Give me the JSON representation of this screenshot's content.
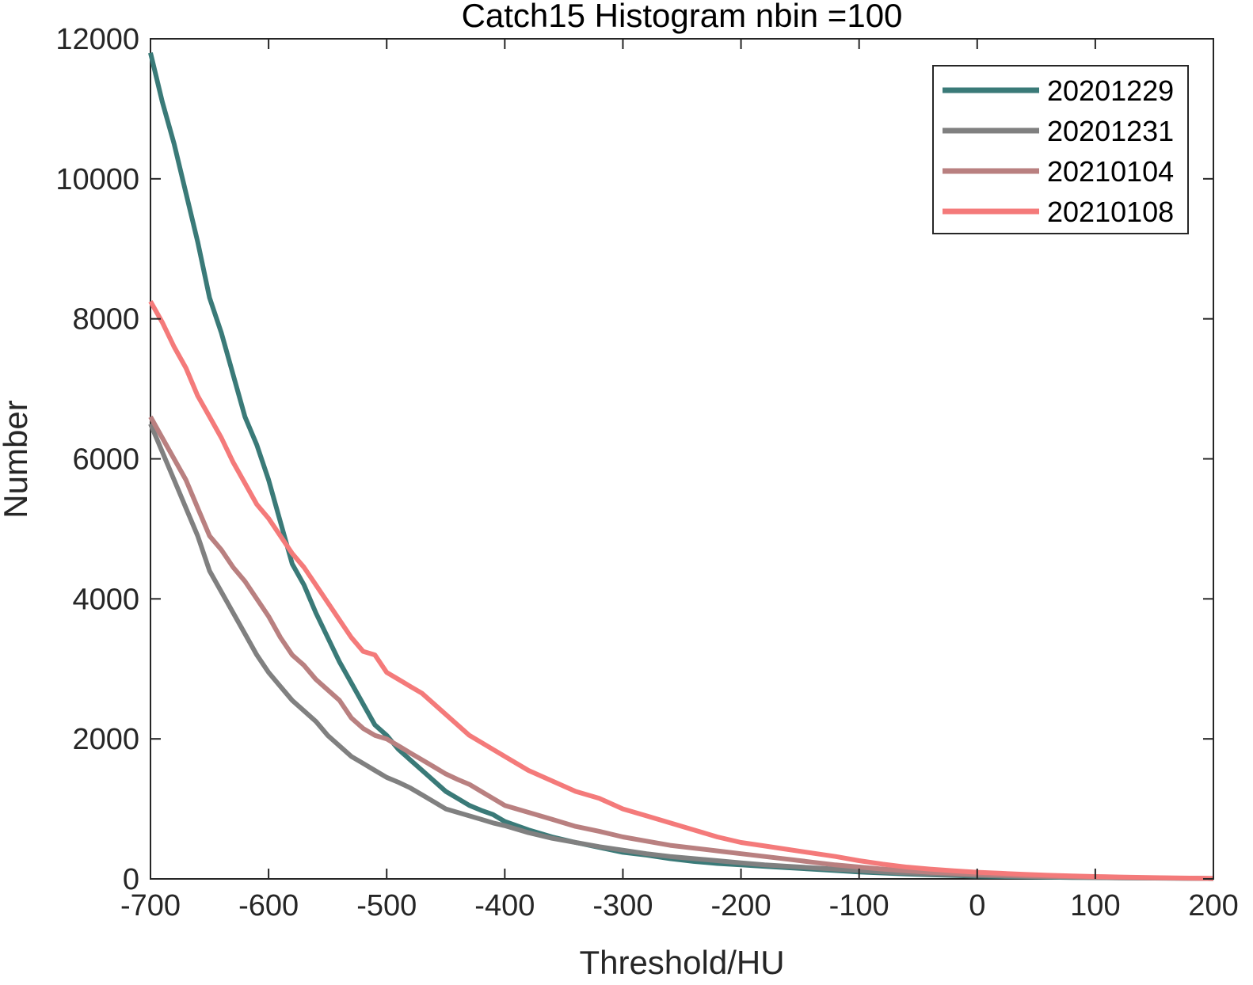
{
  "chart_data": {
    "type": "line",
    "title": "Catch15  Histogram nbin =100",
    "xlabel": "Threshold/HU",
    "ylabel": "Number",
    "xlim": [
      -700,
      200
    ],
    "ylim": [
      0,
      12000
    ],
    "xticks": [
      -700,
      -600,
      -500,
      -400,
      -300,
      -200,
      -100,
      0,
      100,
      200
    ],
    "yticks": [
      0,
      2000,
      4000,
      6000,
      8000,
      10000,
      12000
    ],
    "xtick_labels": [
      "-700",
      "-600",
      "-500",
      "-400",
      "-300",
      "-200",
      "-100",
      "0",
      "100",
      "200"
    ],
    "ytick_labels": [
      "0",
      "2000",
      "4000",
      "6000",
      "8000",
      "10000",
      "12000"
    ],
    "grid": false,
    "legend_position": "top-right",
    "series": [
      {
        "name": "20201229",
        "color": "#3a7a78",
        "x": [
          -700,
          -690,
          -680,
          -670,
          -660,
          -650,
          -640,
          -630,
          -620,
          -610,
          -600,
          -590,
          -580,
          -570,
          -560,
          -550,
          -540,
          -530,
          -520,
          -510,
          -500,
          -490,
          -480,
          -470,
          -460,
          -450,
          -440,
          -430,
          -420,
          -410,
          -400,
          -380,
          -360,
          -340,
          -320,
          -300,
          -280,
          -260,
          -240,
          -220,
          -200,
          -180,
          -160,
          -140,
          -120,
          -100,
          -80,
          -60,
          -40,
          -20,
          0,
          20,
          40,
          60,
          80,
          100,
          120,
          140,
          160,
          180,
          200
        ],
        "values": [
          11800,
          11100,
          10500,
          9800,
          9100,
          8300,
          7800,
          7200,
          6600,
          6200,
          5700,
          5100,
          4500,
          4200,
          3800,
          3450,
          3100,
          2800,
          2500,
          2200,
          2050,
          1850,
          1700,
          1550,
          1400,
          1250,
          1150,
          1050,
          980,
          920,
          820,
          700,
          600,
          520,
          450,
          380,
          340,
          290,
          250,
          220,
          200,
          180,
          160,
          140,
          120,
          100,
          85,
          70,
          60,
          50,
          40,
          35,
          30,
          25,
          20,
          18,
          15,
          12,
          10,
          8,
          5
        ]
      },
      {
        "name": "20201231",
        "color": "#808080",
        "x": [
          -700,
          -690,
          -680,
          -670,
          -660,
          -650,
          -640,
          -630,
          -620,
          -610,
          -600,
          -590,
          -580,
          -570,
          -560,
          -550,
          -540,
          -530,
          -520,
          -510,
          -500,
          -490,
          -480,
          -470,
          -460,
          -450,
          -440,
          -430,
          -420,
          -410,
          -400,
          -380,
          -360,
          -340,
          -320,
          -300,
          -280,
          -260,
          -240,
          -220,
          -200,
          -180,
          -160,
          -140,
          -120,
          -100,
          -80,
          -60,
          -40,
          -20,
          0,
          20,
          40,
          60,
          80,
          100,
          120,
          140,
          160,
          180,
          200
        ],
        "values": [
          6500,
          6100,
          5700,
          5300,
          4900,
          4400,
          4100,
          3800,
          3500,
          3200,
          2950,
          2750,
          2550,
          2400,
          2250,
          2050,
          1900,
          1750,
          1650,
          1550,
          1450,
          1380,
          1300,
          1200,
          1100,
          1000,
          950,
          900,
          850,
          800,
          760,
          660,
          580,
          520,
          460,
          410,
          360,
          320,
          290,
          260,
          230,
          200,
          180,
          160,
          140,
          120,
          100,
          85,
          70,
          60,
          50,
          42,
          35,
          30,
          25,
          20,
          17,
          14,
          11,
          8,
          5
        ]
      },
      {
        "name": "20210104",
        "color": "#b98080",
        "x": [
          -700,
          -690,
          -680,
          -670,
          -660,
          -650,
          -640,
          -630,
          -620,
          -610,
          -600,
          -590,
          -580,
          -570,
          -560,
          -550,
          -540,
          -530,
          -520,
          -510,
          -500,
          -490,
          -480,
          -470,
          -460,
          -450,
          -440,
          -430,
          -420,
          -410,
          -400,
          -380,
          -360,
          -340,
          -320,
          -300,
          -280,
          -260,
          -240,
          -220,
          -200,
          -180,
          -160,
          -140,
          -120,
          -100,
          -80,
          -60,
          -40,
          -20,
          0,
          20,
          40,
          60,
          80,
          100,
          120,
          140,
          160,
          180,
          200
        ],
        "values": [
          6600,
          6300,
          6000,
          5700,
          5300,
          4900,
          4700,
          4450,
          4250,
          4000,
          3750,
          3450,
          3200,
          3050,
          2850,
          2700,
          2550,
          2300,
          2150,
          2050,
          2000,
          1900,
          1800,
          1700,
          1600,
          1500,
          1420,
          1350,
          1250,
          1150,
          1050,
          950,
          850,
          750,
          680,
          600,
          540,
          480,
          440,
          400,
          360,
          320,
          280,
          240,
          200,
          170,
          140,
          115,
          95,
          80,
          65,
          55,
          45,
          38,
          30,
          25,
          20,
          16,
          12,
          9,
          6
        ]
      },
      {
        "name": "20210108",
        "color": "#f47a7a",
        "x": [
          -700,
          -690,
          -680,
          -670,
          -660,
          -650,
          -640,
          -630,
          -620,
          -610,
          -600,
          -590,
          -580,
          -570,
          -560,
          -550,
          -540,
          -530,
          -520,
          -510,
          -500,
          -490,
          -480,
          -470,
          -460,
          -450,
          -440,
          -430,
          -420,
          -410,
          -400,
          -380,
          -360,
          -340,
          -320,
          -300,
          -280,
          -260,
          -240,
          -220,
          -200,
          -180,
          -160,
          -140,
          -120,
          -100,
          -80,
          -60,
          -40,
          -20,
          0,
          20,
          40,
          60,
          80,
          100,
          120,
          140,
          160,
          180,
          200
        ],
        "values": [
          8250,
          7950,
          7600,
          7300,
          6900,
          6600,
          6300,
          5950,
          5650,
          5350,
          5150,
          4900,
          4650,
          4450,
          4200,
          3950,
          3700,
          3450,
          3250,
          3200,
          2950,
          2850,
          2750,
          2650,
          2500,
          2350,
          2200,
          2050,
          1950,
          1850,
          1750,
          1550,
          1400,
          1250,
          1150,
          1000,
          900,
          800,
          700,
          600,
          520,
          470,
          420,
          370,
          320,
          260,
          210,
          170,
          140,
          115,
          95,
          80,
          65,
          52,
          42,
          34,
          27,
          21,
          16,
          11,
          7
        ]
      }
    ]
  }
}
